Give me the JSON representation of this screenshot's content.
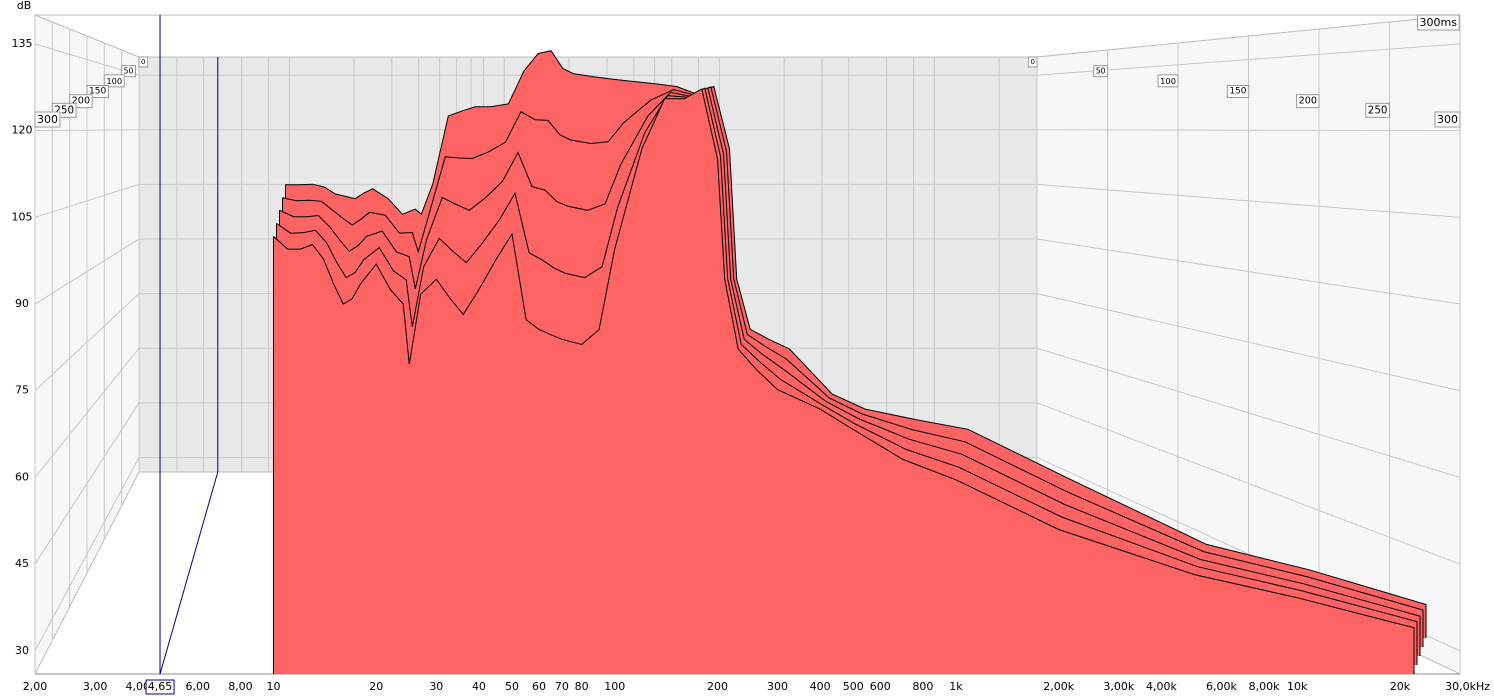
{
  "chart_data": {
    "type": "waterfall",
    "y_label": "dB",
    "corner_label": "300ms",
    "xlim": [
      2,
      30000
    ],
    "ylim": [
      26,
      140
    ],
    "log_x": true,
    "grid": true,
    "color": "#ff6464",
    "yticks": [
      30,
      45,
      60,
      75,
      90,
      105,
      120,
      135
    ],
    "xticks": [
      {
        "value": 2,
        "label": "2,00"
      },
      {
        "value": 3,
        "label": "3,00"
      },
      {
        "value": 4,
        "label": "4,00"
      },
      {
        "value": 6,
        "label": "6,00"
      },
      {
        "value": 8,
        "label": "8,00"
      },
      10,
      20,
      30,
      40,
      50,
      60,
      70,
      80,
      100,
      200,
      300,
      400,
      500,
      600,
      800,
      {
        "value": 1000,
        "label": "1k"
      },
      {
        "value": 2000,
        "label": "2,00k"
      },
      {
        "value": 3000,
        "label": "3,00k"
      },
      {
        "value": 4000,
        "label": "4,00k"
      },
      {
        "value": 6000,
        "label": "6,00k"
      },
      {
        "value": 8000,
        "label": "8,00k"
      },
      {
        "value": 10000,
        "label": "10k"
      },
      {
        "value": 20000,
        "label": "20k"
      },
      {
        "value": 30000,
        "label": "30,0kHz"
      }
    ],
    "time_ticks": [
      0,
      50,
      100,
      150,
      200,
      250,
      300
    ],
    "cursor": {
      "value": 4.65,
      "label": "4,65"
    },
    "x": [
      10,
      11,
      12,
      13,
      14,
      15,
      16,
      17,
      18,
      20,
      22,
      24,
      25,
      27,
      30,
      33,
      36,
      40,
      45,
      50,
      55,
      60,
      65,
      70,
      80,
      90,
      100,
      120,
      140,
      160,
      180,
      200,
      210,
      230,
      260,
      300,
      400,
      500,
      700,
      1000,
      2000,
      5000,
      10000,
      22000
    ],
    "series": [
      {
        "values": [
          104.4,
          104.4,
          104.5,
          104,
          102.8,
          102.4,
          102.0,
          103,
          103.7,
          102.0,
          99.3,
          100.2,
          99.3,
          104.5,
          116.3,
          117.2,
          117.9,
          117.9,
          118.4,
          124.1,
          127.1,
          127.6,
          124.5,
          123.6,
          123.1,
          122.7,
          122.4,
          121.9,
          121.4,
          120.1,
          121.4,
          110.6,
          88.1,
          79.4,
          77.7,
          76,
          68.2,
          65.6,
          63.8,
          62.1,
          53.4,
          42.2,
          37.8,
          31.8
        ]
      },
      {
        "values": [
          103.7,
          103.2,
          103.3,
          103.1,
          101.6,
          100.2,
          99.0,
          100.0,
          101.2,
          100.7,
          97.6,
          97.7,
          94.4,
          101.3,
          110.8,
          110.6,
          110.5,
          111.6,
          113.3,
          118.6,
          117.2,
          117.1,
          114.6,
          113.7,
          113.1,
          113.4,
          116.7,
          120.6,
          122.4,
          121.5,
          122.9,
          111.7,
          89.7,
          80.1,
          78.0,
          75.8,
          69.1,
          66.3,
          63.6,
          61.5,
          52.8,
          42.5,
          38.2,
          32.4
        ]
      },
      {
        "values": [
          103.1,
          102.0,
          102.0,
          102.2,
          100.3,
          98.0,
          96.0,
          97.0,
          98.6,
          99.5,
          95.9,
          95.1,
          89.5,
          98.1,
          105.3,
          104.1,
          103.1,
          105.2,
          108.1,
          113.1,
          107.2,
          106.6,
          104.6,
          103.8,
          103.1,
          104.2,
          111.0,
          119.4,
          123.5,
          122.8,
          124.3,
          112.9,
          91.2,
          80.8,
          78.2,
          75.6,
          70.0,
          67.0,
          63.5,
          60.9,
          52.2,
          42.7,
          38.5,
          32.9
        ]
      },
      {
        "values": [
          102.4,
          100.7,
          100.8,
          101.2,
          99.1,
          95.7,
          93.0,
          93.9,
          96.1,
          98.2,
          94.2,
          92.6,
          84.5,
          94.9,
          99.8,
          97.5,
          95.6,
          98.9,
          103.0,
          107.6,
          97.3,
          96.1,
          94.7,
          93.8,
          93.0,
          94.9,
          105.2,
          118.1,
          124.5,
          124.2,
          125.8,
          114.0,
          92.8,
          81.5,
          78.5,
          75.4,
          70.9,
          67.6,
          63.3,
          60.2,
          51.6,
          43.0,
          38.9,
          33.5
        ]
      },
      {
        "values": [
          101.7,
          99.5,
          99.5,
          100.3,
          97.8,
          93.5,
          90.0,
          90.9,
          93.5,
          96.9,
          92.5,
          90.0,
          79.6,
          91.7,
          94.3,
          90.9,
          88.2,
          92.5,
          97.8,
          102.1,
          87.3,
          85.6,
          84.7,
          83.9,
          83.0,
          85.6,
          99.5,
          116.8,
          125.5,
          125.5,
          127.2,
          115.1,
          94.3,
          82.2,
          78.7,
          75.2,
          71.8,
          68.3,
          63.1,
          59.6,
          51.0,
          43.2,
          39.2,
          34.0
        ]
      }
    ]
  }
}
